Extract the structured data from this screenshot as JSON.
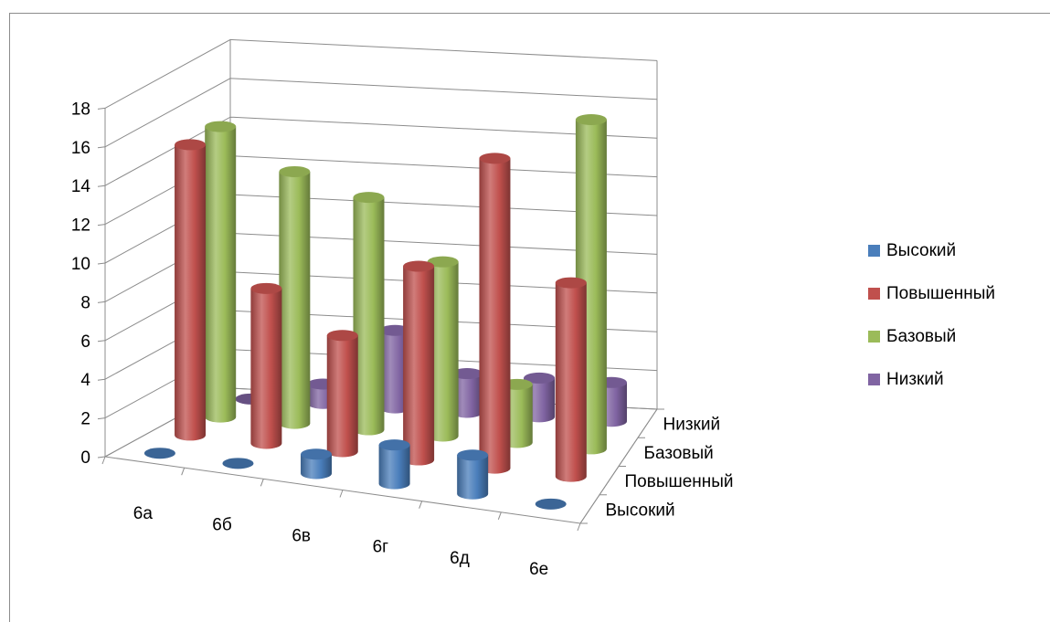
{
  "chart_data": {
    "type": "bar",
    "variant": "3d-cylinder",
    "categories": [
      "6а",
      "6б",
      "6в",
      "6г",
      "6д",
      "6е"
    ],
    "series": [
      {
        "name": "Высокий",
        "values": [
          0,
          0,
          1,
          2,
          2,
          0
        ],
        "color": "#4a7ebb"
      },
      {
        "name": "Повышенный",
        "values": [
          15,
          8,
          6,
          10,
          16,
          10
        ],
        "color": "#c0504d"
      },
      {
        "name": "Базовый",
        "values": [
          15,
          13,
          12,
          9,
          3,
          17
        ],
        "color": "#9bbb59"
      },
      {
        "name": "Низкий",
        "values": [
          0,
          1,
          4,
          2,
          2,
          2
        ],
        "color": "#8064a2"
      }
    ],
    "y_ticks": [
      "0",
      "2",
      "4",
      "6",
      "8",
      "10",
      "12",
      "14",
      "16",
      "18"
    ],
    "ylim": [
      0,
      18
    ],
    "grid": true,
    "legend_position": "right",
    "title": "",
    "xlabel": "",
    "ylabel": ""
  }
}
